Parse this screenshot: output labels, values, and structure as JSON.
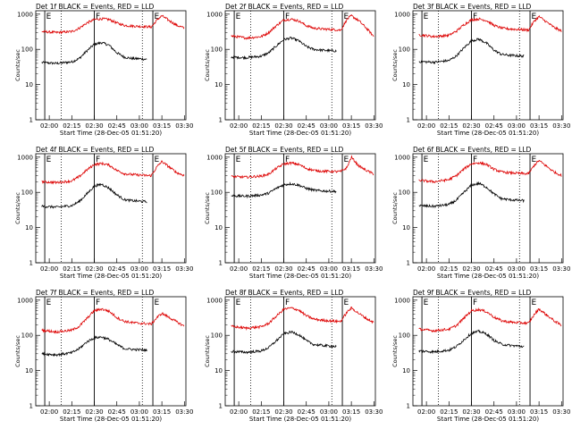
{
  "title_suffix": " BLACK = Events, RED = LLD",
  "xlabel": "Start Time (28-Dec-05 01:51:20)",
  "ylabel": "Counts/sec",
  "x_ticks": [
    "02:00",
    "02:15",
    "02:30",
    "02:45",
    "03:00",
    "03:15",
    "03:30"
  ],
  "y_ticks": [
    "1",
    "10",
    "100",
    "1000"
  ],
  "markers": [
    {
      "label": "E",
      "time": "01:57"
    },
    {
      "label": "F",
      "time": "02:30"
    },
    {
      "label": "E",
      "time": "03:09"
    }
  ],
  "dotted_line_times": [
    "02:08",
    "03:02"
  ],
  "colors": {
    "events": "#000000",
    "lld": "#dd0000"
  },
  "chart_data": [
    {
      "type": "line",
      "title": "Det 1f",
      "x_range": [
        "01:51",
        "03:31"
      ],
      "ylim": [
        1,
        1000
      ],
      "log_y": true,
      "series": [
        {
          "color": "black",
          "x": [
            "01:55",
            "02:05",
            "02:15",
            "02:20",
            "02:25",
            "02:30",
            "02:35",
            "02:40",
            "02:45",
            "02:50",
            "02:55",
            "03:00",
            "03:05"
          ],
          "y": [
            42,
            40,
            44,
            55,
            90,
            140,
            155,
            130,
            80,
            60,
            55,
            54,
            52
          ]
        },
        {
          "color": "red",
          "x": [
            "01:55",
            "02:05",
            "02:15",
            "02:20",
            "02:25",
            "02:30",
            "02:35",
            "02:40",
            "02:45",
            "02:50",
            "02:55",
            "03:00",
            "03:05",
            "03:08",
            "03:12",
            "03:15",
            "03:20",
            "03:25",
            "03:30"
          ],
          "y": [
            320,
            300,
            320,
            400,
            560,
            700,
            740,
            700,
            560,
            480,
            460,
            450,
            440,
            430,
            700,
            900,
            650,
            480,
            400
          ]
        }
      ]
    },
    {
      "type": "line",
      "title": "Det 2f",
      "x_range": [
        "01:51",
        "03:31"
      ],
      "ylim": [
        1,
        1000
      ],
      "log_y": true,
      "series": [
        {
          "color": "black",
          "x": [
            "01:55",
            "02:05",
            "02:15",
            "02:20",
            "02:25",
            "02:30",
            "02:35",
            "02:40",
            "02:45",
            "02:50",
            "02:55",
            "03:00",
            "03:05"
          ],
          "y": [
            60,
            58,
            64,
            80,
            125,
            190,
            210,
            175,
            120,
            100,
            95,
            92,
            90
          ]
        },
        {
          "color": "red",
          "x": [
            "01:55",
            "02:05",
            "02:15",
            "02:20",
            "02:25",
            "02:30",
            "02:35",
            "02:40",
            "02:45",
            "02:50",
            "02:55",
            "03:00",
            "03:05",
            "03:08",
            "03:12",
            "03:15",
            "03:20",
            "03:25",
            "03:30"
          ],
          "y": [
            240,
            210,
            230,
            300,
            470,
            680,
            720,
            640,
            470,
            400,
            380,
            370,
            360,
            350,
            700,
            900,
            650,
            400,
            230
          ]
        }
      ]
    },
    {
      "type": "line",
      "title": "Det 3f",
      "x_range": [
        "01:51",
        "03:31"
      ],
      "ylim": [
        1,
        1000
      ],
      "log_y": true,
      "series": [
        {
          "color": "black",
          "x": [
            "01:55",
            "02:05",
            "02:15",
            "02:20",
            "02:25",
            "02:30",
            "02:35",
            "02:40",
            "02:45",
            "02:50",
            "02:55",
            "03:00",
            "03:05"
          ],
          "y": [
            45,
            43,
            48,
            65,
            110,
            175,
            195,
            150,
            95,
            72,
            68,
            66,
            64
          ]
        },
        {
          "color": "red",
          "x": [
            "01:55",
            "02:05",
            "02:15",
            "02:20",
            "02:25",
            "02:30",
            "02:35",
            "02:40",
            "02:45",
            "02:50",
            "02:55",
            "03:00",
            "03:05",
            "03:08",
            "03:12",
            "03:15",
            "03:20",
            "03:25",
            "03:30"
          ],
          "y": [
            260,
            230,
            250,
            330,
            500,
            690,
            730,
            660,
            480,
            400,
            380,
            370,
            360,
            350,
            650,
            850,
            600,
            420,
            330
          ]
        }
      ]
    },
    {
      "type": "line",
      "title": "Det 4f",
      "x_range": [
        "01:51",
        "03:31"
      ],
      "ylim": [
        1,
        1000
      ],
      "log_y": true,
      "series": [
        {
          "color": "black",
          "x": [
            "01:55",
            "02:05",
            "02:15",
            "02:20",
            "02:25",
            "02:30",
            "02:35",
            "02:40",
            "02:45",
            "02:50",
            "02:55",
            "03:00",
            "03:05"
          ],
          "y": [
            40,
            38,
            42,
            55,
            90,
            150,
            170,
            130,
            85,
            62,
            58,
            56,
            54
          ]
        },
        {
          "color": "red",
          "x": [
            "01:55",
            "02:05",
            "02:15",
            "02:20",
            "02:25",
            "02:30",
            "02:35",
            "02:40",
            "02:45",
            "02:50",
            "02:55",
            "03:00",
            "03:05",
            "03:08",
            "03:12",
            "03:15",
            "03:20",
            "03:25",
            "03:30"
          ],
          "y": [
            200,
            190,
            210,
            280,
            430,
            620,
            660,
            590,
            420,
            340,
            320,
            310,
            300,
            300,
            550,
            750,
            520,
            360,
            300
          ]
        }
      ]
    },
    {
      "type": "line",
      "title": "Det 5f",
      "x_range": [
        "01:51",
        "03:31"
      ],
      "ylim": [
        1,
        1000
      ],
      "log_y": true,
      "series": [
        {
          "color": "black",
          "x": [
            "01:55",
            "02:05",
            "02:15",
            "02:20",
            "02:25",
            "02:30",
            "02:35",
            "02:40",
            "02:45",
            "02:50",
            "02:55",
            "03:00",
            "03:05"
          ],
          "y": [
            80,
            78,
            84,
            95,
            130,
            165,
            175,
            160,
            130,
            115,
            110,
            108,
            106
          ]
        },
        {
          "color": "red",
          "x": [
            "01:55",
            "02:05",
            "02:15",
            "02:20",
            "02:25",
            "02:30",
            "02:35",
            "02:40",
            "02:45",
            "02:50",
            "02:55",
            "03:00",
            "03:05",
            "03:08",
            "03:12",
            "03:15",
            "03:20",
            "03:25",
            "03:30"
          ],
          "y": [
            280,
            270,
            290,
            330,
            480,
            640,
            680,
            620,
            480,
            420,
            400,
            395,
            390,
            390,
            500,
            1000,
            560,
            420,
            330
          ]
        }
      ]
    },
    {
      "type": "line",
      "title": "Det 6f",
      "x_range": [
        "01:51",
        "03:31"
      ],
      "ylim": [
        1,
        1000
      ],
      "log_y": true,
      "series": [
        {
          "color": "black",
          "x": [
            "01:55",
            "02:05",
            "02:15",
            "02:20",
            "02:25",
            "02:30",
            "02:35",
            "02:40",
            "02:45",
            "02:50",
            "02:55",
            "03:00",
            "03:05"
          ],
          "y": [
            42,
            40,
            45,
            60,
            100,
            160,
            180,
            140,
            90,
            66,
            62,
            60,
            58
          ]
        },
        {
          "color": "red",
          "x": [
            "01:55",
            "02:05",
            "02:15",
            "02:20",
            "02:25",
            "02:30",
            "02:35",
            "02:40",
            "02:45",
            "02:50",
            "02:55",
            "03:00",
            "03:05",
            "03:08",
            "03:12",
            "03:15",
            "03:20",
            "03:25",
            "03:30"
          ],
          "y": [
            220,
            200,
            230,
            300,
            460,
            650,
            690,
            620,
            450,
            380,
            360,
            350,
            340,
            340,
            600,
            800,
            550,
            380,
            300
          ]
        }
      ]
    },
    {
      "type": "line",
      "title": "Det 7f",
      "x_range": [
        "01:51",
        "03:31"
      ],
      "ylim": [
        1,
        1000
      ],
      "log_y": true,
      "series": [
        {
          "color": "black",
          "x": [
            "01:55",
            "02:05",
            "02:15",
            "02:20",
            "02:25",
            "02:30",
            "02:35",
            "02:40",
            "02:45",
            "02:50",
            "02:55",
            "03:00",
            "03:05"
          ],
          "y": [
            30,
            28,
            32,
            42,
            65,
            85,
            90,
            75,
            55,
            42,
            40,
            39,
            38
          ]
        },
        {
          "color": "red",
          "x": [
            "01:55",
            "02:05",
            "02:15",
            "02:20",
            "02:25",
            "02:30",
            "02:35",
            "02:40",
            "02:45",
            "02:50",
            "02:55",
            "03:00",
            "03:05",
            "03:08",
            "03:12",
            "03:15",
            "03:20",
            "03:25",
            "03:30"
          ],
          "y": [
            140,
            125,
            140,
            180,
            300,
            500,
            560,
            480,
            320,
            250,
            230,
            220,
            215,
            210,
            330,
            420,
            320,
            240,
            180
          ]
        }
      ]
    },
    {
      "type": "line",
      "title": "Det 8f",
      "x_range": [
        "01:51",
        "03:31"
      ],
      "ylim": [
        1,
        1000
      ],
      "log_y": true,
      "series": [
        {
          "color": "black",
          "x": [
            "01:55",
            "02:05",
            "02:15",
            "02:20",
            "02:25",
            "02:30",
            "02:35",
            "02:40",
            "02:45",
            "02:50",
            "02:55",
            "03:00",
            "03:05"
          ],
          "y": [
            35,
            33,
            36,
            45,
            70,
            110,
            125,
            105,
            70,
            55,
            52,
            50,
            48
          ]
        },
        {
          "color": "red",
          "x": [
            "01:55",
            "02:05",
            "02:15",
            "02:20",
            "02:25",
            "02:30",
            "02:35",
            "02:40",
            "02:45",
            "02:50",
            "02:55",
            "03:00",
            "03:05",
            "03:08",
            "03:12",
            "03:15",
            "03:20",
            "03:25",
            "03:30"
          ],
          "y": [
            180,
            160,
            175,
            220,
            350,
            550,
            600,
            520,
            360,
            290,
            270,
            260,
            250,
            250,
            450,
            600,
            420,
            300,
            230
          ]
        }
      ]
    },
    {
      "type": "line",
      "title": "Det 9f",
      "x_range": [
        "01:51",
        "03:31"
      ],
      "ylim": [
        1,
        1000
      ],
      "log_y": true,
      "series": [
        {
          "color": "black",
          "x": [
            "01:55",
            "02:05",
            "02:15",
            "02:20",
            "02:25",
            "02:30",
            "02:35",
            "02:40",
            "02:45",
            "02:50",
            "02:55",
            "03:00",
            "03:05"
          ],
          "y": [
            36,
            34,
            38,
            48,
            75,
            115,
            130,
            110,
            72,
            56,
            52,
            50,
            48
          ]
        },
        {
          "color": "red",
          "x": [
            "01:55",
            "02:05",
            "02:15",
            "02:20",
            "02:25",
            "02:30",
            "02:35",
            "02:40",
            "02:45",
            "02:50",
            "02:55",
            "03:00",
            "03:05",
            "03:08",
            "03:12",
            "03:15",
            "03:20",
            "03:25",
            "03:30"
          ],
          "y": [
            150,
            135,
            150,
            190,
            310,
            500,
            540,
            470,
            330,
            260,
            240,
            230,
            225,
            220,
            400,
            560,
            380,
            260,
            190
          ]
        }
      ]
    }
  ]
}
